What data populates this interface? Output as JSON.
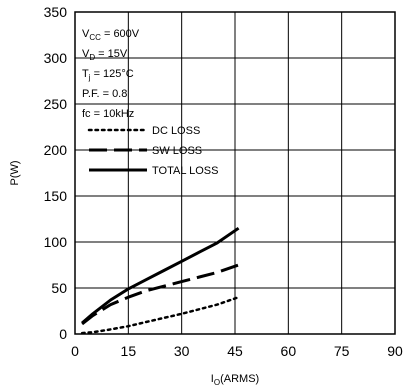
{
  "chart_data": {
    "type": "line",
    "xlabel": {
      "main": "I",
      "sub": "O",
      "rest": "(ARMS)"
    },
    "ylabel": "P(W)",
    "xlim": [
      0,
      90
    ],
    "ylim": [
      0,
      350
    ],
    "xticks": [
      0,
      15,
      30,
      45,
      60,
      75,
      90
    ],
    "yticks": [
      0,
      50,
      100,
      150,
      200,
      250,
      300,
      350
    ],
    "grid": true,
    "conditions": [
      {
        "pre": "V",
        "sub": "CC",
        "post": " = 600V"
      },
      {
        "pre": "V",
        "sub": "D",
        "post": " = 15V"
      },
      {
        "pre": "T",
        "sub": "j",
        "post": " = 125°C"
      },
      {
        "pre": "P.F. = 0.8",
        "sub": "",
        "post": ""
      },
      {
        "pre": "fc = 10kHz",
        "sub": "",
        "post": ""
      }
    ],
    "legend_position": "top-left",
    "series": [
      {
        "name": "DC LOSS",
        "style": "dotted",
        "x": [
          2,
          5,
          10,
          15,
          20,
          25,
          30,
          35,
          40,
          46
        ],
        "y": [
          1,
          2,
          5,
          8.5,
          13,
          17.5,
          22,
          27,
          32,
          40
        ]
      },
      {
        "name": "SW LOSS",
        "style": "dashed",
        "x": [
          2,
          5,
          10,
          15,
          20,
          25,
          30,
          35,
          40,
          46
        ],
        "y": [
          11,
          20,
          32,
          40,
          47,
          52,
          57,
          62,
          67,
          75
        ]
      },
      {
        "name": "TOTAL LOSS",
        "style": "solid",
        "x": [
          2,
          5,
          10,
          15,
          20,
          25,
          30,
          35,
          40,
          46
        ],
        "y": [
          12,
          22,
          37,
          49,
          59,
          69,
          79,
          89,
          99,
          115
        ]
      }
    ]
  }
}
